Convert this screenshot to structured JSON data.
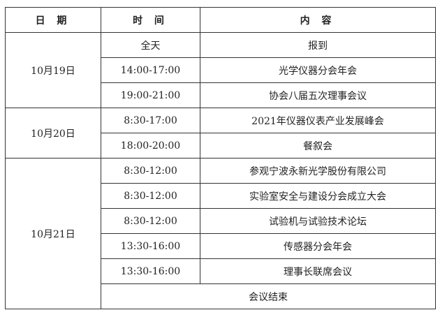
{
  "headers": [
    "日 期",
    "时 间",
    "内 容"
  ],
  "days": [
    {
      "date": "10月19日",
      "sessions": [
        {
          "time": "全天",
          "content": "报到"
        },
        {
          "time": "14:00-17:00",
          "content": "光学仪器分会年会"
        },
        {
          "time": "19:00-21:00",
          "content": "协会八届五次理事会议"
        }
      ]
    },
    {
      "date": "10月20日",
      "sessions": [
        {
          "time": "8:30-17:00",
          "content": "2021年仪器仪表产业发展峰会"
        },
        {
          "time": "18:00-20:00",
          "content": "餐叙会"
        }
      ]
    },
    {
      "date": "10月21日",
      "sessions": [
        {
          "time": "8:30-12:00",
          "content": "参观宁波永新光学股份有限公司"
        },
        {
          "time": "8:30-12:00",
          "content": "实验室安全与建设分会成立大会"
        },
        {
          "time": "8:30-12:00",
          "content": "试验机与试验技术论坛"
        },
        {
          "time": "13:30-16:00",
          "content": "传感器分会年会"
        },
        {
          "time": "13:30-16:00",
          "content": "理事长联席会议"
        }
      ]
    }
  ],
  "closing": "会议结束"
}
